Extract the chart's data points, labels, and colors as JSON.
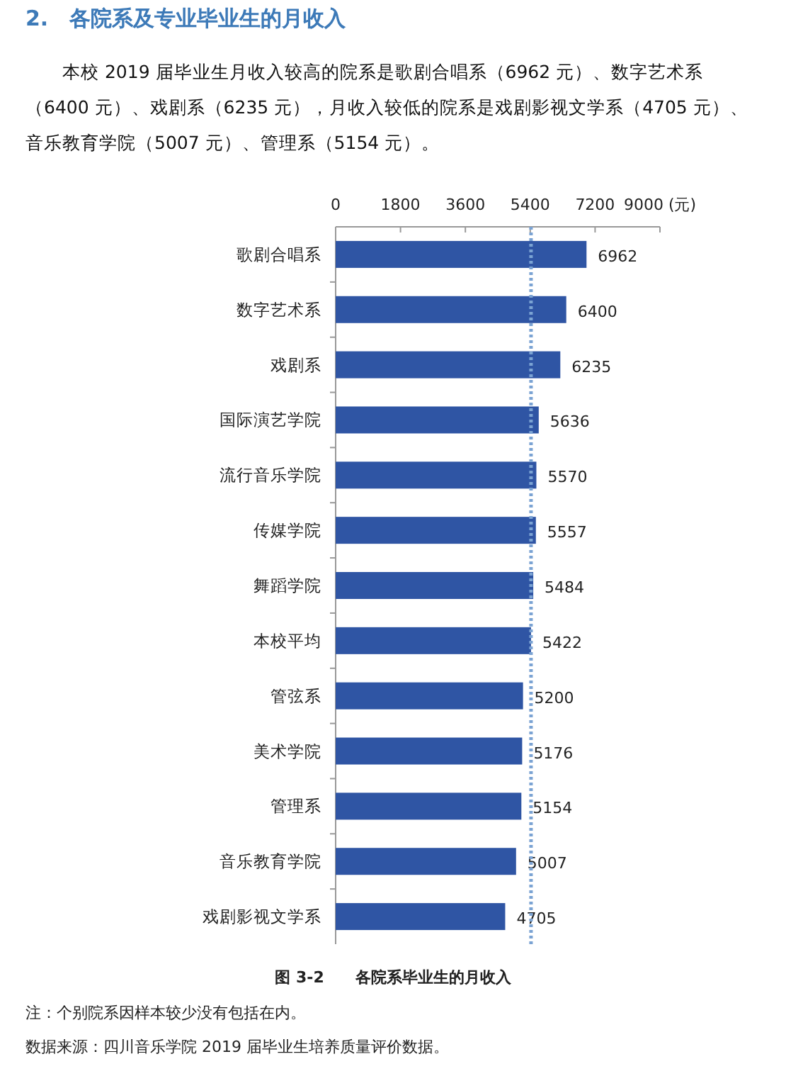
{
  "chart_data": {
    "type": "bar",
    "orientation": "horizontal",
    "title": "2.　各院系及专业毕业生的月收入",
    "subtitle": "本校 2019 届毕业生月收入较高的院系是歌剧合唱系（6962 元）、数字艺术系（6400 元）、戏剧系（6235 元），月收入较低的院系是戏剧影视文学系（4705 元）、音乐教育学院（5007 元）、管理系（5154 元）。",
    "categories": [
      "歌剧合唱系",
      "数字艺术系",
      "戏剧系",
      "国际演艺学院",
      "流行音乐学院",
      "传媒学院",
      "舞蹈学院",
      "本校平均",
      "管弦系",
      "美术学院",
      "管理系",
      "音乐教育学院",
      "戏剧影视文学系"
    ],
    "values": [
      6962,
      6400,
      6235,
      5636,
      5570,
      5557,
      5484,
      5422,
      5200,
      5176,
      5154,
      5007,
      4705
    ],
    "color": "#2f55a4",
    "xlim": [
      0,
      9000
    ],
    "xticks": [
      0,
      1800,
      3600,
      5400,
      7200,
      {
        "value": 9000,
        "label": "9000 (元)"
      }
    ],
    "ref_lines": [
      {
        "axis": "x",
        "value": 5422,
        "color": "#7ba3d3",
        "line_style": "dotted"
      }
    ],
    "data_labels": true,
    "grid": false,
    "annotations": [
      "图 3-2　　各院系毕业生的月收入",
      "注：个别院系因样本较少没有包括在内。",
      "数据来源：四川音乐学院 2019 届毕业生培养质量评价数据。"
    ]
  }
}
